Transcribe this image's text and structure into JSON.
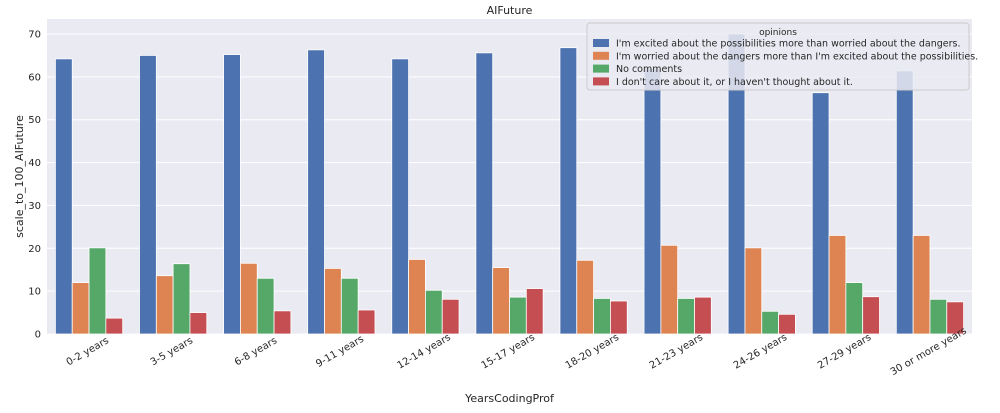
{
  "chart_data": {
    "type": "bar",
    "title": "AIFuture",
    "xlabel": "YearsCodingProf",
    "ylabel": "scale_to_100_AIFuture",
    "ylim": [
      0,
      73.5
    ],
    "yticks": [
      0,
      10,
      20,
      30,
      40,
      50,
      60,
      70
    ],
    "grid": true,
    "legend_title": "opinions",
    "legend_position": "top-right",
    "categories": [
      "0-2 years",
      "3-5 years",
      "6-8 years",
      "9-11 years",
      "12-14 years",
      "15-17 years",
      "18-20 years",
      "21-23 years",
      "24-26 years",
      "27-29 years",
      "30 or more years"
    ],
    "series": [
      {
        "name": "I'm excited about the possibilities more than worried about the dangers.",
        "color": "#4c72b0",
        "values": [
          64.2,
          65.0,
          65.2,
          66.3,
          64.2,
          65.6,
          66.8,
          62.0,
          70.0,
          56.3,
          61.4
        ]
      },
      {
        "name": "I'm worried about the dangers more than I'm excited about the possibilities.",
        "color": "#dd8452",
        "values": [
          12.0,
          13.6,
          16.5,
          15.3,
          17.4,
          15.5,
          17.2,
          20.7,
          20.1,
          23.0,
          23.0
        ]
      },
      {
        "name": "No comments",
        "color": "#55a868",
        "values": [
          20.1,
          16.4,
          13.0,
          13.0,
          10.2,
          8.6,
          8.3,
          8.3,
          5.3,
          12.0,
          8.1
        ]
      },
      {
        "name": "I don't care about it, or I haven't thought about it.",
        "color": "#c44e52",
        "values": [
          3.7,
          5.0,
          5.4,
          5.6,
          8.1,
          10.6,
          7.7,
          8.6,
          4.6,
          8.7,
          7.5
        ]
      }
    ]
  }
}
